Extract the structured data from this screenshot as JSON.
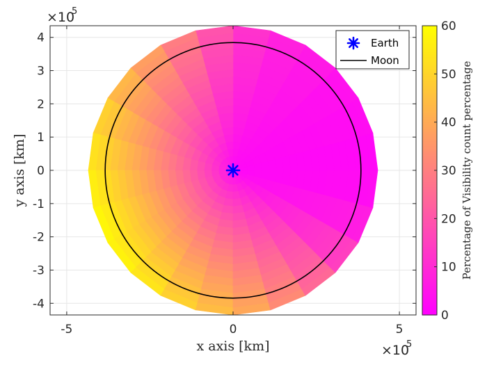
{
  "chart_data": {
    "type": "heatmap",
    "subtype": "polar-sector-map",
    "xlabel": "x axis [km]",
    "ylabel": "y axis [km]",
    "x_exponent_label": "×10",
    "x_exponent_power": "5",
    "y_exponent_label": "×10",
    "y_exponent_power": "5",
    "xlim": [
      -550000,
      550000
    ],
    "ylim": [
      -435000,
      435000
    ],
    "x_ticks": [
      -500000,
      0,
      500000
    ],
    "x_tick_labels": [
      "-5",
      "0",
      "5"
    ],
    "y_ticks": [
      -400000,
      -300000,
      -200000,
      -100000,
      0,
      100000,
      200000,
      300000,
      400000
    ],
    "y_tick_labels": [
      "-4",
      "-3",
      "-2",
      "-1",
      "0",
      "1",
      "2",
      "3",
      "4"
    ],
    "grid": true,
    "outer_radius_km": 435000,
    "sector_count": 24,
    "ring_count": 20,
    "sector_edge_values": [
      {
        "angle_deg": 0,
        "value": 2
      },
      {
        "angle_deg": 15,
        "value": 3
      },
      {
        "angle_deg": 30,
        "value": 4
      },
      {
        "angle_deg": 45,
        "value": 6
      },
      {
        "angle_deg": 60,
        "value": 8
      },
      {
        "angle_deg": 75,
        "value": 12
      },
      {
        "angle_deg": 90,
        "value": 20
      },
      {
        "angle_deg": 105,
        "value": 30
      },
      {
        "angle_deg": 120,
        "value": 38
      },
      {
        "angle_deg": 135,
        "value": 44
      },
      {
        "angle_deg": 150,
        "value": 50
      },
      {
        "angle_deg": 165,
        "value": 54
      },
      {
        "angle_deg": 180,
        "value": 57
      },
      {
        "angle_deg": 195,
        "value": 59
      },
      {
        "angle_deg": 210,
        "value": 58
      },
      {
        "angle_deg": 225,
        "value": 55
      },
      {
        "angle_deg": 240,
        "value": 50
      },
      {
        "angle_deg": 255,
        "value": 45
      },
      {
        "angle_deg": 270,
        "value": 40
      },
      {
        "angle_deg": 285,
        "value": 33
      },
      {
        "angle_deg": 300,
        "value": 25
      },
      {
        "angle_deg": 315,
        "value": 15
      },
      {
        "angle_deg": 330,
        "value": 7
      },
      {
        "angle_deg": 345,
        "value": 3
      }
    ],
    "center_value": 2,
    "colorbar": {
      "label": "Percentage of Visibility count percentage",
      "min": 0,
      "max": 60,
      "ticks": [
        0,
        10,
        20,
        30,
        40,
        50,
        60
      ],
      "tick_labels": [
        "0",
        "10",
        "20",
        "30",
        "40",
        "50",
        "60"
      ],
      "colormap": "spring",
      "color_low": "#ff00ff",
      "color_high": "#ffff00"
    },
    "series": [
      {
        "name": "Earth",
        "type": "point",
        "x": 0,
        "y": 0,
        "marker": "asterisk",
        "color": "#0000ff"
      },
      {
        "name": "Moon",
        "type": "circle",
        "center": [
          0,
          0
        ],
        "radius_km": 384400,
        "color": "#000000"
      }
    ],
    "legend": {
      "placement": "top-right",
      "entries": [
        "Earth",
        "Moon"
      ]
    }
  }
}
